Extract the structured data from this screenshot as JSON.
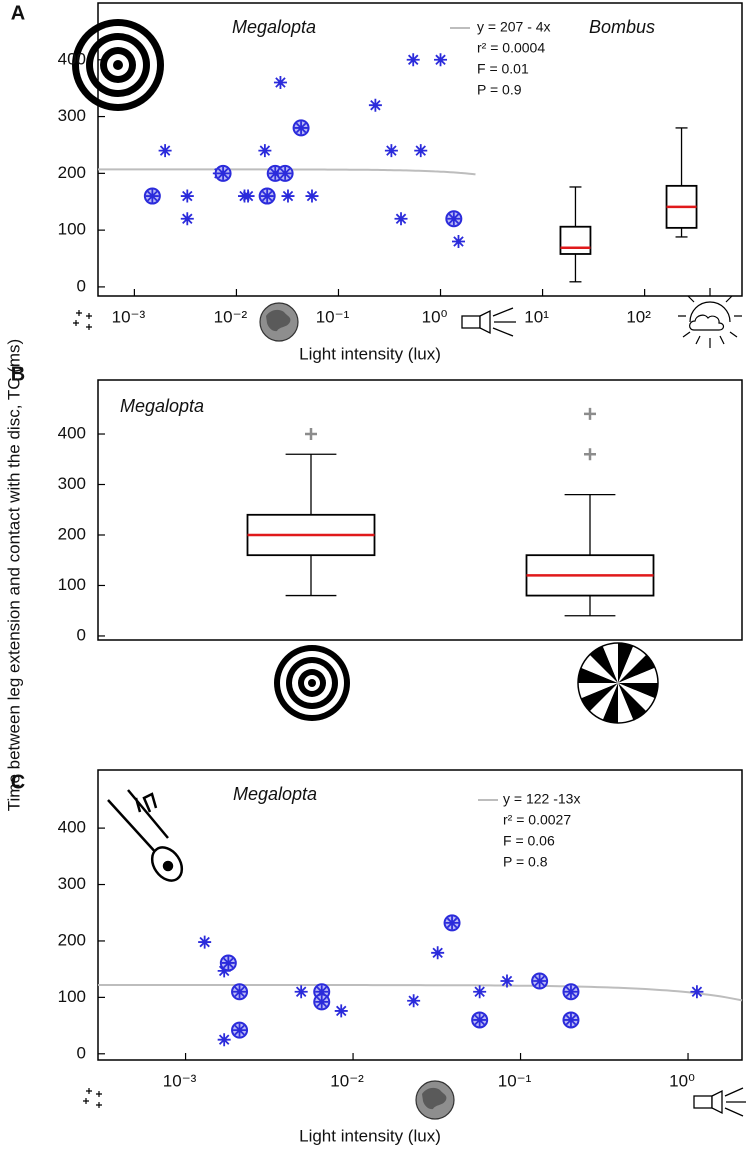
{
  "ylabel": "Time between leg extension and contact with the disc, TC (ms)",
  "chart_data": [
    {
      "type": "scatter",
      "panel_label": "A",
      "title": "Megalopta",
      "group_label": "Bombus",
      "x_log": true,
      "xlim": [
        0.00044,
        900
      ],
      "xticks": [
        {
          "value": 0.001,
          "label": "10⁻³"
        },
        {
          "value": 0.01,
          "label": "10⁻²"
        },
        {
          "value": 0.1,
          "label": "10⁻¹"
        },
        {
          "value": 1,
          "label": "10⁰"
        },
        {
          "value": 10,
          "label": "10¹"
        },
        {
          "value": 100,
          "label": "10²"
        }
      ],
      "ylim": [
        -16,
        500
      ],
      "yticks": [
        0,
        100,
        200,
        300,
        400
      ],
      "xlabel": "Light intensity (lux)",
      "series": [
        {
          "marker": "asterisk",
          "color": "#2b2bdb",
          "x": [
            0.002,
            0.0033,
            0.0033,
            0.0068,
            0.012,
            0.013,
            0.019,
            0.027,
            0.032,
            0.055,
            0.23,
            0.33,
            0.41,
            0.54,
            0.64,
            1.0,
            1.5
          ],
          "values": [
            240,
            160,
            120,
            200,
            160,
            160,
            240,
            360,
            160,
            160,
            320,
            240,
            120,
            400,
            240,
            400,
            80
          ]
        },
        {
          "marker": "circle-asterisk",
          "color": "#2b2bdb",
          "x": [
            0.0015,
            0.0074,
            0.02,
            0.024,
            0.03,
            0.043,
            1.35
          ],
          "values": [
            160,
            200,
            160,
            200,
            200,
            280,
            120
          ]
        }
      ],
      "fit": {
        "intercept": 207,
        "slope": -4,
        "xlim": [
          0.00044,
          2.2
        ],
        "color": "#bdbdbd"
      },
      "annotations": [
        "y = 207 - 4x",
        "r² = 0.0004",
        "F = 0.01",
        "P = 0.9"
      ],
      "boxes": [
        {
          "x": 21,
          "whislo": 9,
          "q1": 58,
          "med": 69,
          "q3": 106,
          "whishi": 176
        },
        {
          "x": 230,
          "whislo": 88,
          "q1": 104,
          "med": 141,
          "q3": 178,
          "whishi": 280
        }
      ],
      "median_color": "#e0191b"
    },
    {
      "type": "box",
      "panel_label": "B",
      "title": "Megalopta",
      "ylim": [
        -8,
        507
      ],
      "yticks": [
        0,
        100,
        200,
        300,
        400
      ],
      "boxes": [
        {
          "whislo": 80,
          "q1": 160,
          "med": 200,
          "q3": 240,
          "whishi": 360,
          "fliers": [
            400
          ]
        },
        {
          "whislo": 40,
          "q1": 80,
          "med": 120,
          "q3": 160,
          "whishi": 280,
          "fliers": [
            360,
            440
          ]
        }
      ],
      "median_color": "#e0191b",
      "flier_color": "#8c8c8c"
    },
    {
      "type": "scatter",
      "panel_label": "C",
      "title": "Megalopta",
      "x_log": true,
      "xlim": [
        0.0003,
        2.1
      ],
      "xticks": [
        {
          "value": 0.001,
          "label": "10⁻³"
        },
        {
          "value": 0.01,
          "label": "10⁻²"
        },
        {
          "value": 0.1,
          "label": "10⁻¹"
        },
        {
          "value": 1,
          "label": "10⁰"
        }
      ],
      "ylim": [
        -11,
        503
      ],
      "yticks": [
        0,
        100,
        200,
        300,
        400
      ],
      "xlabel": "Light intensity (lux)",
      "series": [
        {
          "marker": "asterisk",
          "color": "#2b2bdb",
          "x": [
            0.0013,
            0.0017,
            0.0017,
            0.0049,
            0.0064,
            0.0085,
            0.023,
            0.032,
            0.057,
            0.083,
            1.13
          ],
          "values": [
            198,
            147,
            25,
            110,
            96,
            76,
            94,
            179,
            110,
            129,
            110
          ]
        },
        {
          "marker": "circle-asterisk",
          "color": "#2b2bdb",
          "x": [
            0.0018,
            0.0021,
            0.0021,
            0.0065,
            0.0065,
            0.039,
            0.057,
            0.13,
            0.2,
            0.2
          ],
          "values": [
            161,
            110,
            42,
            110,
            92,
            232,
            60,
            129,
            110,
            60
          ]
        }
      ],
      "fit": {
        "intercept": 122,
        "slope": -13,
        "color": "#bdbdbd"
      },
      "annotations": [
        "y = 122 -13x",
        "r² = 0.0027",
        "F = 0.06",
        "P = 0.8"
      ]
    }
  ]
}
